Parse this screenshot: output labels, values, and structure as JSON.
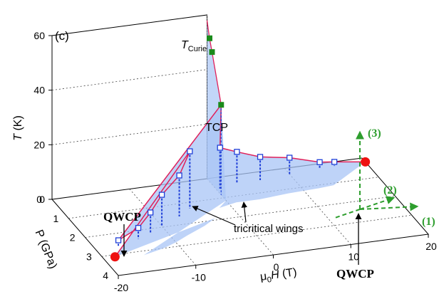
{
  "chart_data": {
    "type": "scatter",
    "panel_label": "(c)",
    "axes": {
      "t_label_main": "T",
      "t_label_unit": " (K)",
      "p_label": "P (GPa)",
      "h_label_prefix": "μ",
      "h_label_sub": "0",
      "h_label_main": "H",
      "h_label_unit": "  (T)"
    },
    "ticks": {
      "t": [
        "0",
        "20",
        "40",
        "60"
      ],
      "p": [
        "0",
        "1",
        "2",
        "3",
        "4"
      ],
      "h": [
        "-20",
        "-10",
        "0",
        "10",
        "20"
      ]
    },
    "t_range": [
      0,
      60
    ],
    "p_range": [
      0,
      4
    ],
    "h_range": [
      -20,
      20
    ],
    "curie_points": [
      {
        "p": 0.15,
        "h": 0,
        "t": 52.5
      },
      {
        "p": 0.3,
        "h": 0,
        "t": 48.5
      },
      {
        "p": 0.85,
        "h": 0,
        "t": 33
      }
    ],
    "curie_label": "T",
    "curie_label_sub": "Curie",
    "tcp_label": "TCP",
    "wing_points_left": [
      {
        "p": 2.6,
        "h": -17,
        "t": 2
      },
      {
        "p": 2.4,
        "h": -14,
        "t": 4
      },
      {
        "p": 2.2,
        "h": -12,
        "t": 7.5
      },
      {
        "p": 1.95,
        "h": -10,
        "t": 11.5
      },
      {
        "p": 1.6,
        "h": -7,
        "t": 15
      },
      {
        "p": 1.3,
        "h": -5,
        "t": 21
      }
    ],
    "wing_points_right": [
      {
        "p": 0.55,
        "h": 0.5,
        "t": 15
      },
      {
        "p": 0.4,
        "h": 3,
        "t": 11.5
      },
      {
        "p": 0.4,
        "h": 6,
        "t": 8.5
      },
      {
        "p": 0.3,
        "h": 10,
        "t": 6
      },
      {
        "p": 0.25,
        "h": 14,
        "t": 2.5
      },
      {
        "p": 0.2,
        "h": 16,
        "t": 1.5
      }
    ],
    "qwcp_points": [
      {
        "p": 3.1,
        "h": -18.5,
        "t": 0
      },
      {
        "p": 0.2,
        "h": 20,
        "t": 0
      }
    ],
    "qwcp_label": "QWCP",
    "wings_label": "tricritical wings",
    "direction_labels": [
      "(1)",
      "(2)",
      "(3)"
    ],
    "colors": {
      "curie_marker": "#1a8a1a",
      "qwcp_marker": "#ee1111",
      "wing_fill": "#a8c4f5",
      "wing_line": "#e0205a",
      "wing_marker": "#1f3fd8",
      "direction": "#2e9e2e"
    }
  }
}
